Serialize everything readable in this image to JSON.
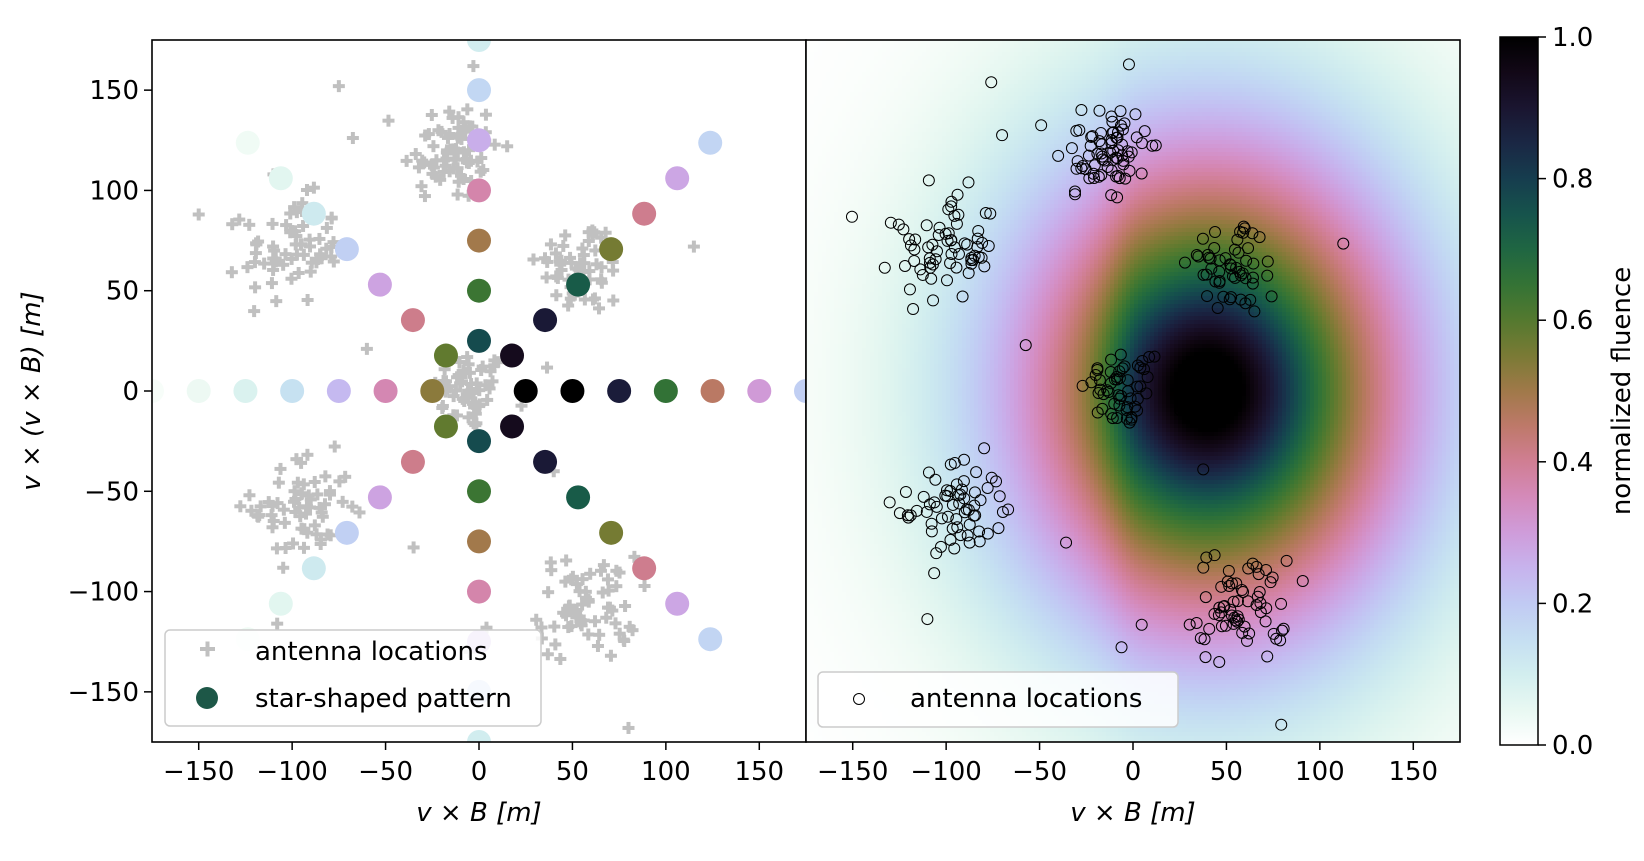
{
  "chart_data": [
    {
      "type": "scatter",
      "panel": "left",
      "xlabel": "v × B [m]",
      "ylabel": "v × (v × B) [m]",
      "xlim": [
        -175,
        175
      ],
      "ylim": [
        -175,
        175
      ],
      "xticks": [
        -150,
        -100,
        -50,
        0,
        50,
        100,
        150
      ],
      "yticks": [
        -150,
        -100,
        -50,
        0,
        50,
        100,
        150
      ],
      "tick_labels": [
        "−150",
        "−100",
        "−50",
        "0",
        "50",
        "100",
        "150"
      ],
      "legend_position": "lower-left",
      "series": [
        {
          "name": "antenna locations",
          "marker": "plus",
          "color": "#c0c0c0",
          "clusters": [
            {
              "center": [
                -5,
                0
              ],
              "spread": 10,
              "count": 55
            },
            {
              "center": [
                -15,
                120
              ],
              "spread": 13,
              "count": 75
            },
            {
              "center": [
                55,
                62
              ],
              "spread": 12,
              "count": 55
            },
            {
              "center": [
                -100,
                70
              ],
              "spread": 13,
              "count": 65
            },
            {
              "center": [
                -95,
                -58
              ],
              "spread": 13,
              "count": 65
            },
            {
              "center": [
                58,
                -108
              ],
              "spread": 13,
              "count": 65
            }
          ]
        },
        {
          "name": "star-shaped pattern",
          "marker": "circle",
          "legend_color": "#1d5747",
          "arms_deg": [
            0,
            45,
            90,
            135,
            180,
            225,
            270,
            315
          ],
          "radii": [
            25,
            50,
            75,
            100,
            125,
            150,
            175
          ],
          "fluence_model": "gaussian with dark core near (40, 0) and emission ring at radius ~70",
          "point_color_scale": "cubehelix (0 = light mint, 1 = black)"
        }
      ]
    },
    {
      "type": "heatmap",
      "panel": "right",
      "xlabel": "v × B [m]",
      "ylabel": "",
      "xlim": [
        -175,
        175
      ],
      "ylim": [
        -175,
        175
      ],
      "xticks": [
        -150,
        -100,
        -50,
        0,
        50,
        100,
        150
      ],
      "tick_labels": [
        "−150",
        "−100",
        "−50",
        "0",
        "50",
        "100",
        "150"
      ],
      "field": {
        "name": "normalized fluence",
        "peak_center": [
          40,
          0
        ],
        "core_radius": 35,
        "sigma_x": 80,
        "sigma_y": 90,
        "range": [
          0,
          1
        ]
      },
      "overlay": {
        "name": "antenna locations",
        "marker": "open-circle",
        "same_as_left_clusters": true,
        "jitter": 18
      },
      "legend_position": "lower-left"
    },
    {
      "type": "colorbar",
      "label": "normalized fluence",
      "range": [
        0,
        1
      ],
      "ticks": [
        0.0,
        0.2,
        0.4,
        0.6,
        0.8,
        1.0
      ],
      "tick_labels": [
        "0.0",
        "0.2",
        "0.4",
        "0.6",
        "0.8",
        "1.0"
      ],
      "colormap": "cubehelix"
    }
  ],
  "legends": {
    "left": [
      "antenna locations",
      "star-shaped pattern"
    ],
    "right": [
      "antenna locations"
    ]
  }
}
